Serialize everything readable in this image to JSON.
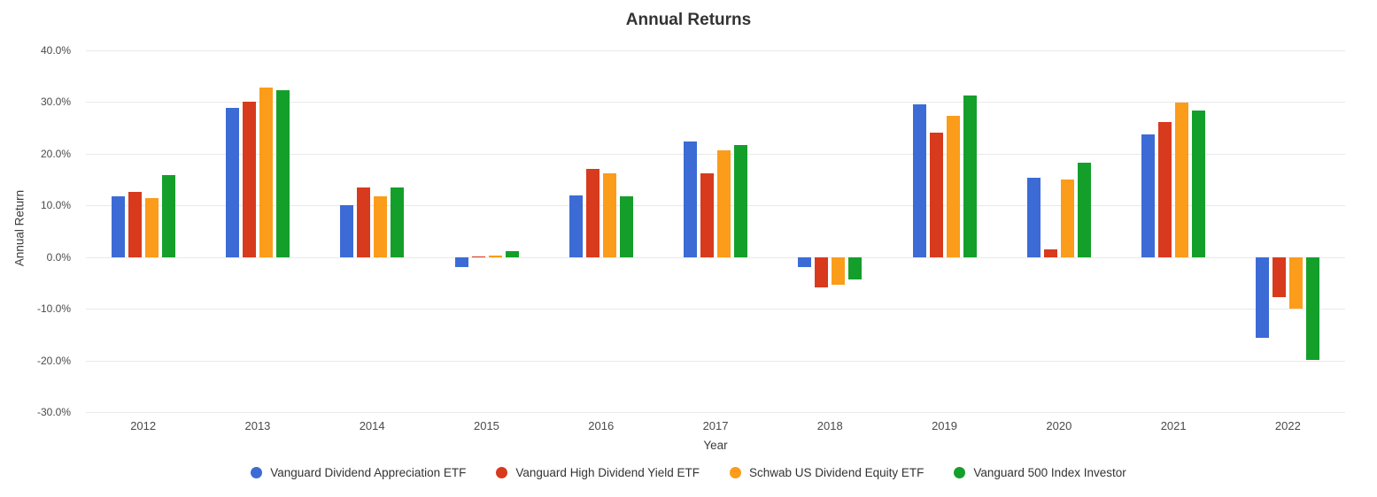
{
  "title": "Annual Returns",
  "axes": {
    "y_title": "Annual Return",
    "x_title": "Year",
    "y_ticks": [
      {
        "value": 40,
        "label": "40.0%"
      },
      {
        "value": 30,
        "label": "30.0%"
      },
      {
        "value": 20,
        "label": "20.0%"
      },
      {
        "value": 10,
        "label": "10.0%"
      },
      {
        "value": 0,
        "label": "0.0%"
      },
      {
        "value": -10,
        "label": "-10.0%"
      },
      {
        "value": -20,
        "label": "-20.0%"
      },
      {
        "value": -30,
        "label": "-30.0%"
      }
    ]
  },
  "colors": {
    "background": "#ffffff",
    "gridline": "#e9e9e9",
    "title_text": "#333333",
    "tick_text": "#4a4a4a",
    "series_blue": "#3c6bd6",
    "series_red": "#d83a1d",
    "series_orange": "#fb9c1b",
    "series_green": "#149f2b"
  },
  "chart_data": {
    "type": "bar",
    "title": "Annual Returns",
    "xlabel": "Year",
    "ylabel": "Annual Return",
    "ylim": [
      -30,
      40
    ],
    "grid": true,
    "legend_position": "bottom",
    "value_unit": "percent",
    "categories": [
      "2012",
      "2013",
      "2014",
      "2015",
      "2016",
      "2017",
      "2018",
      "2019",
      "2020",
      "2021",
      "2022"
    ],
    "series": [
      {
        "name": "Vanguard Dividend Appreciation ETF",
        "color": "#3c6bd6",
        "values": [
          11.8,
          28.8,
          10.0,
          -1.9,
          11.9,
          22.3,
          -1.9,
          29.6,
          15.4,
          23.8,
          -15.7
        ]
      },
      {
        "name": "Vanguard High Dividend Yield ETF",
        "color": "#d83a1d",
        "values": [
          12.7,
          30.1,
          13.5,
          0.2,
          17.0,
          16.3,
          -5.8,
          24.1,
          1.5,
          26.2,
          -7.8
        ]
      },
      {
        "name": "Schwab US Dividend Equity ETF",
        "color": "#fb9c1b",
        "values": [
          11.4,
          32.9,
          11.8,
          0.3,
          16.3,
          20.7,
          -5.4,
          27.3,
          15.0,
          29.9,
          -10.0
        ]
      },
      {
        "name": "Vanguard 500 Index Investor",
        "color": "#149f2b",
        "values": [
          15.8,
          32.3,
          13.5,
          1.2,
          11.8,
          21.7,
          -4.4,
          31.3,
          18.3,
          28.4,
          -19.9
        ]
      }
    ]
  }
}
